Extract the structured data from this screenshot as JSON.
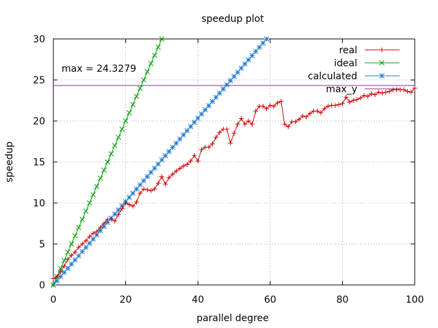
{
  "chart_data": {
    "type": "line",
    "title": "speedup plot",
    "xlabel": "parallel degree",
    "ylabel": "speedup",
    "xlim": [
      0,
      100
    ],
    "ylim": [
      0,
      30
    ],
    "xticks": [
      "0",
      "20",
      "40",
      "60",
      "80",
      "100"
    ],
    "yticks": [
      "0",
      "5",
      "10",
      "15",
      "20",
      "25",
      "30"
    ],
    "grid": true,
    "legend_position": "top-right",
    "annotation": "max = 24.3279",
    "hline": {
      "name": "max_y",
      "y": 24.3279,
      "color": "#8b2f8b"
    },
    "series": [
      {
        "name": "real",
        "color": "#cc0000",
        "marker": "+",
        "x": [
          0,
          1,
          2,
          3,
          4,
          5,
          6,
          7,
          8,
          9,
          10,
          11,
          12,
          13,
          14,
          15,
          16,
          17,
          18,
          19,
          20,
          21,
          22,
          23,
          24,
          25,
          26,
          27,
          28,
          29,
          30,
          31,
          32,
          33,
          34,
          35,
          36,
          37,
          38,
          39,
          40,
          41,
          42,
          43,
          44,
          45,
          46,
          47,
          48,
          49,
          50,
          51,
          52,
          53,
          54,
          55,
          56,
          57,
          58,
          59,
          60,
          61,
          62,
          63,
          64,
          65,
          66,
          67,
          68,
          69,
          70,
          71,
          72,
          73,
          74,
          75,
          76,
          77,
          78,
          79,
          80,
          81,
          82,
          83,
          84,
          85,
          86,
          87,
          88,
          89,
          90,
          91,
          92,
          93,
          94,
          95,
          96,
          97,
          98,
          99,
          100
        ],
        "values": [
          0.8,
          1.0,
          1.6,
          2.3,
          3.1,
          3.6,
          4.0,
          4.6,
          5.0,
          5.4,
          5.9,
          6.3,
          6.5,
          7.0,
          7.5,
          8.0,
          8.0,
          7.8,
          8.6,
          9.3,
          10.0,
          9.8,
          9.6,
          10.1,
          11.2,
          11.7,
          11.6,
          11.5,
          11.7,
          12.4,
          13.2,
          12.3,
          13.1,
          13.5,
          13.9,
          14.2,
          14.5,
          14.7,
          15.1,
          15.8,
          15.1,
          16.5,
          16.8,
          16.8,
          17.2,
          18.0,
          18.6,
          19.0,
          19.0,
          17.3,
          18.5,
          19.6,
          20.3,
          19.6,
          20.0,
          19.6,
          21.2,
          21.8,
          21.8,
          21.5,
          21.9,
          21.8,
          22.2,
          22.4,
          19.6,
          19.3,
          19.9,
          19.9,
          20.2,
          20.6,
          20.5,
          20.9,
          21.2,
          21.2,
          21.0,
          21.5,
          21.8,
          21.9,
          21.9,
          22.0,
          22.1,
          22.9,
          22.3,
          22.5,
          22.6,
          22.8,
          23.1,
          23.0,
          23.3,
          23.2,
          23.5,
          23.4,
          23.5,
          23.6,
          23.8,
          23.8,
          23.8,
          23.8,
          23.6,
          23.5,
          24.0
        ],
        "x_offset_note": ""
      },
      {
        "name": "ideal",
        "color": "#00a000",
        "marker": "x",
        "x": [
          0,
          1,
          2,
          3,
          4,
          5,
          6,
          7,
          8,
          9,
          10,
          11,
          12,
          13,
          14,
          15,
          16,
          17,
          18,
          19,
          20,
          21,
          22,
          23,
          24,
          25,
          26,
          27,
          28,
          29,
          30
        ],
        "values": [
          0,
          1,
          2,
          3,
          4,
          5,
          6,
          7,
          8,
          9,
          10,
          11,
          12,
          13,
          14,
          15,
          16,
          17,
          18,
          19,
          20,
          21,
          22,
          23,
          24,
          25,
          26,
          27,
          28,
          29,
          30
        ]
      },
      {
        "name": "calculated",
        "color": "#1e78d4",
        "marker": "*",
        "x": [
          0,
          1,
          2,
          3,
          4,
          5,
          6,
          7,
          8,
          9,
          10,
          11,
          12,
          13,
          14,
          15,
          16,
          17,
          18,
          19,
          20,
          21,
          22,
          23,
          24,
          25,
          26,
          27,
          28,
          29,
          30,
          31,
          32,
          33,
          34,
          35,
          36,
          37,
          38,
          39,
          40,
          41,
          42,
          43,
          44,
          45,
          46,
          47,
          48,
          49,
          50,
          51,
          52,
          53,
          54,
          55,
          56,
          57,
          58,
          59
        ],
        "values": [
          0,
          0.508,
          1.017,
          1.525,
          2.034,
          2.542,
          3.051,
          3.559,
          4.068,
          4.576,
          5.085,
          5.593,
          6.102,
          6.61,
          7.119,
          7.627,
          8.136,
          8.644,
          9.153,
          9.661,
          10.169,
          10.678,
          11.186,
          11.695,
          12.203,
          12.712,
          13.22,
          13.729,
          14.237,
          14.746,
          15.254,
          15.763,
          16.271,
          16.78,
          17.288,
          17.797,
          18.305,
          18.814,
          19.322,
          19.831,
          20.339,
          20.847,
          21.356,
          21.864,
          22.373,
          22.881,
          23.39,
          23.898,
          24.407,
          24.915,
          25.424,
          25.932,
          26.441,
          26.949,
          27.458,
          27.966,
          28.475,
          28.983,
          29.492,
          30.0
        ]
      }
    ]
  }
}
